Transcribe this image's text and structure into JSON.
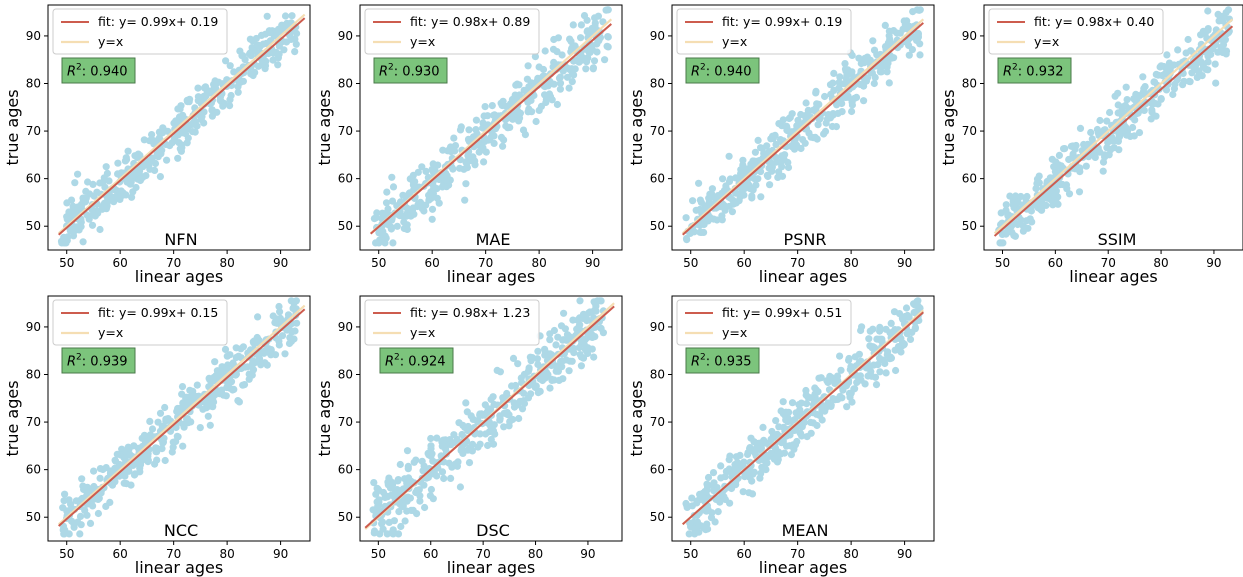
{
  "figure": {
    "colors": {
      "scatter": "#add8e6",
      "fit_line": "#cd5c4e",
      "identity_line": "#f5deb3",
      "r2_box_fill": "#7cc47c",
      "r2_box_edge": "#4a7a4a"
    }
  },
  "chart_data": [
    {
      "type": "scatter",
      "title": "NFN",
      "xlabel": "linear ages",
      "ylabel": "true ages",
      "xlim": [
        46.5,
        95.5
      ],
      "ylim": [
        45,
        96.5
      ],
      "xticks": [
        50,
        60,
        70,
        80,
        90
      ],
      "yticks": [
        50,
        60,
        70,
        80,
        90
      ],
      "legend": [
        "fit: y= 0.99x+ 0.19",
        "y=x"
      ],
      "legend_position": "top-left",
      "r2_label": "0.940",
      "fit": {
        "slope": 0.99,
        "intercept": 0.19
      },
      "identity_range": [
        48.5,
        94.5
      ],
      "seed": 11,
      "noise": 2.6
    },
    {
      "type": "scatter",
      "title": "MAE",
      "xlabel": "linear ages",
      "ylabel": "true ages",
      "xlim": [
        46.5,
        95.5
      ],
      "ylim": [
        45,
        96.5
      ],
      "xticks": [
        50,
        60,
        70,
        80,
        90
      ],
      "yticks": [
        50,
        60,
        70,
        80,
        90
      ],
      "legend": [
        "fit: y= 0.98x+ 0.89",
        "y=x"
      ],
      "legend_position": "top-left",
      "r2_label": "0.930",
      "fit": {
        "slope": 0.98,
        "intercept": 0.89
      },
      "identity_range": [
        48.5,
        93.5
      ],
      "seed": 23,
      "noise": 2.8
    },
    {
      "type": "scatter",
      "title": "PSNR",
      "xlabel": "linear ages",
      "ylabel": "true ages",
      "xlim": [
        46.5,
        95.5
      ],
      "ylim": [
        45,
        96.5
      ],
      "xticks": [
        50,
        60,
        70,
        80,
        90
      ],
      "yticks": [
        50,
        60,
        70,
        80,
        90
      ],
      "legend": [
        "fit: y= 0.99x+ 0.19",
        "y=x"
      ],
      "legend_position": "top-left",
      "r2_label": "0.940",
      "fit": {
        "slope": 0.99,
        "intercept": 0.19
      },
      "identity_range": [
        48.5,
        93.5
      ],
      "seed": 37,
      "noise": 2.6
    },
    {
      "type": "scatter",
      "title": "SSIM",
      "xlabel": "linear ages",
      "ylabel": "true ages",
      "xlim": [
        46.5,
        95.5
      ],
      "ylim": [
        45,
        96.5
      ],
      "xticks": [
        50,
        60,
        70,
        80,
        90
      ],
      "yticks": [
        50,
        60,
        70,
        80,
        90
      ],
      "legend": [
        "fit: y= 0.98x+ 0.40",
        "y=x"
      ],
      "legend_position": "top-left",
      "r2_label": "0.932",
      "fit": {
        "slope": 0.98,
        "intercept": 0.4
      },
      "identity_range": [
        48.5,
        93.5
      ],
      "seed": 41,
      "noise": 2.75
    },
    {
      "type": "scatter",
      "title": "NCC",
      "xlabel": "linear ages",
      "ylabel": "true ages",
      "xlim": [
        46.5,
        95.5
      ],
      "ylim": [
        45,
        96.5
      ],
      "xticks": [
        50,
        60,
        70,
        80,
        90
      ],
      "yticks": [
        50,
        60,
        70,
        80,
        90
      ],
      "legend": [
        "fit: y= 0.99x+ 0.15",
        "y=x"
      ],
      "legend_position": "top-left",
      "r2_label": "0.939",
      "fit": {
        "slope": 0.99,
        "intercept": 0.15
      },
      "identity_range": [
        48.5,
        94.5
      ],
      "seed": 53,
      "noise": 2.6
    },
    {
      "type": "scatter",
      "title": "DSC",
      "xlabel": "linear ages",
      "ylabel": "true ages",
      "xlim": [
        46.5,
        96.5
      ],
      "ylim": [
        45,
        96.5
      ],
      "xticks": [
        50,
        60,
        70,
        80,
        90
      ],
      "yticks": [
        50,
        60,
        70,
        80,
        90
      ],
      "legend": [
        "fit: y= 0.98x+ 1.23",
        "y=x"
      ],
      "legend_position": "top-left",
      "r2_label": "0.924",
      "fit": {
        "slope": 0.98,
        "intercept": 1.23
      },
      "identity_range": [
        47.5,
        95
      ],
      "seed": 67,
      "noise": 2.95
    },
    {
      "type": "scatter",
      "title": "MEAN",
      "xlabel": "linear ages",
      "ylabel": "true ages",
      "xlim": [
        46.5,
        95.5
      ],
      "ylim": [
        45,
        96.5
      ],
      "xticks": [
        50,
        60,
        70,
        80,
        90
      ],
      "yticks": [
        50,
        60,
        70,
        80,
        90
      ],
      "legend": [
        "fit: y= 0.99x+ 0.51",
        "y=x"
      ],
      "legend_position": "top-left",
      "r2_label": "0.935",
      "fit": {
        "slope": 0.99,
        "intercept": 0.51
      },
      "identity_range": [
        48.5,
        93.5
      ],
      "seed": 79,
      "noise": 2.7
    }
  ]
}
